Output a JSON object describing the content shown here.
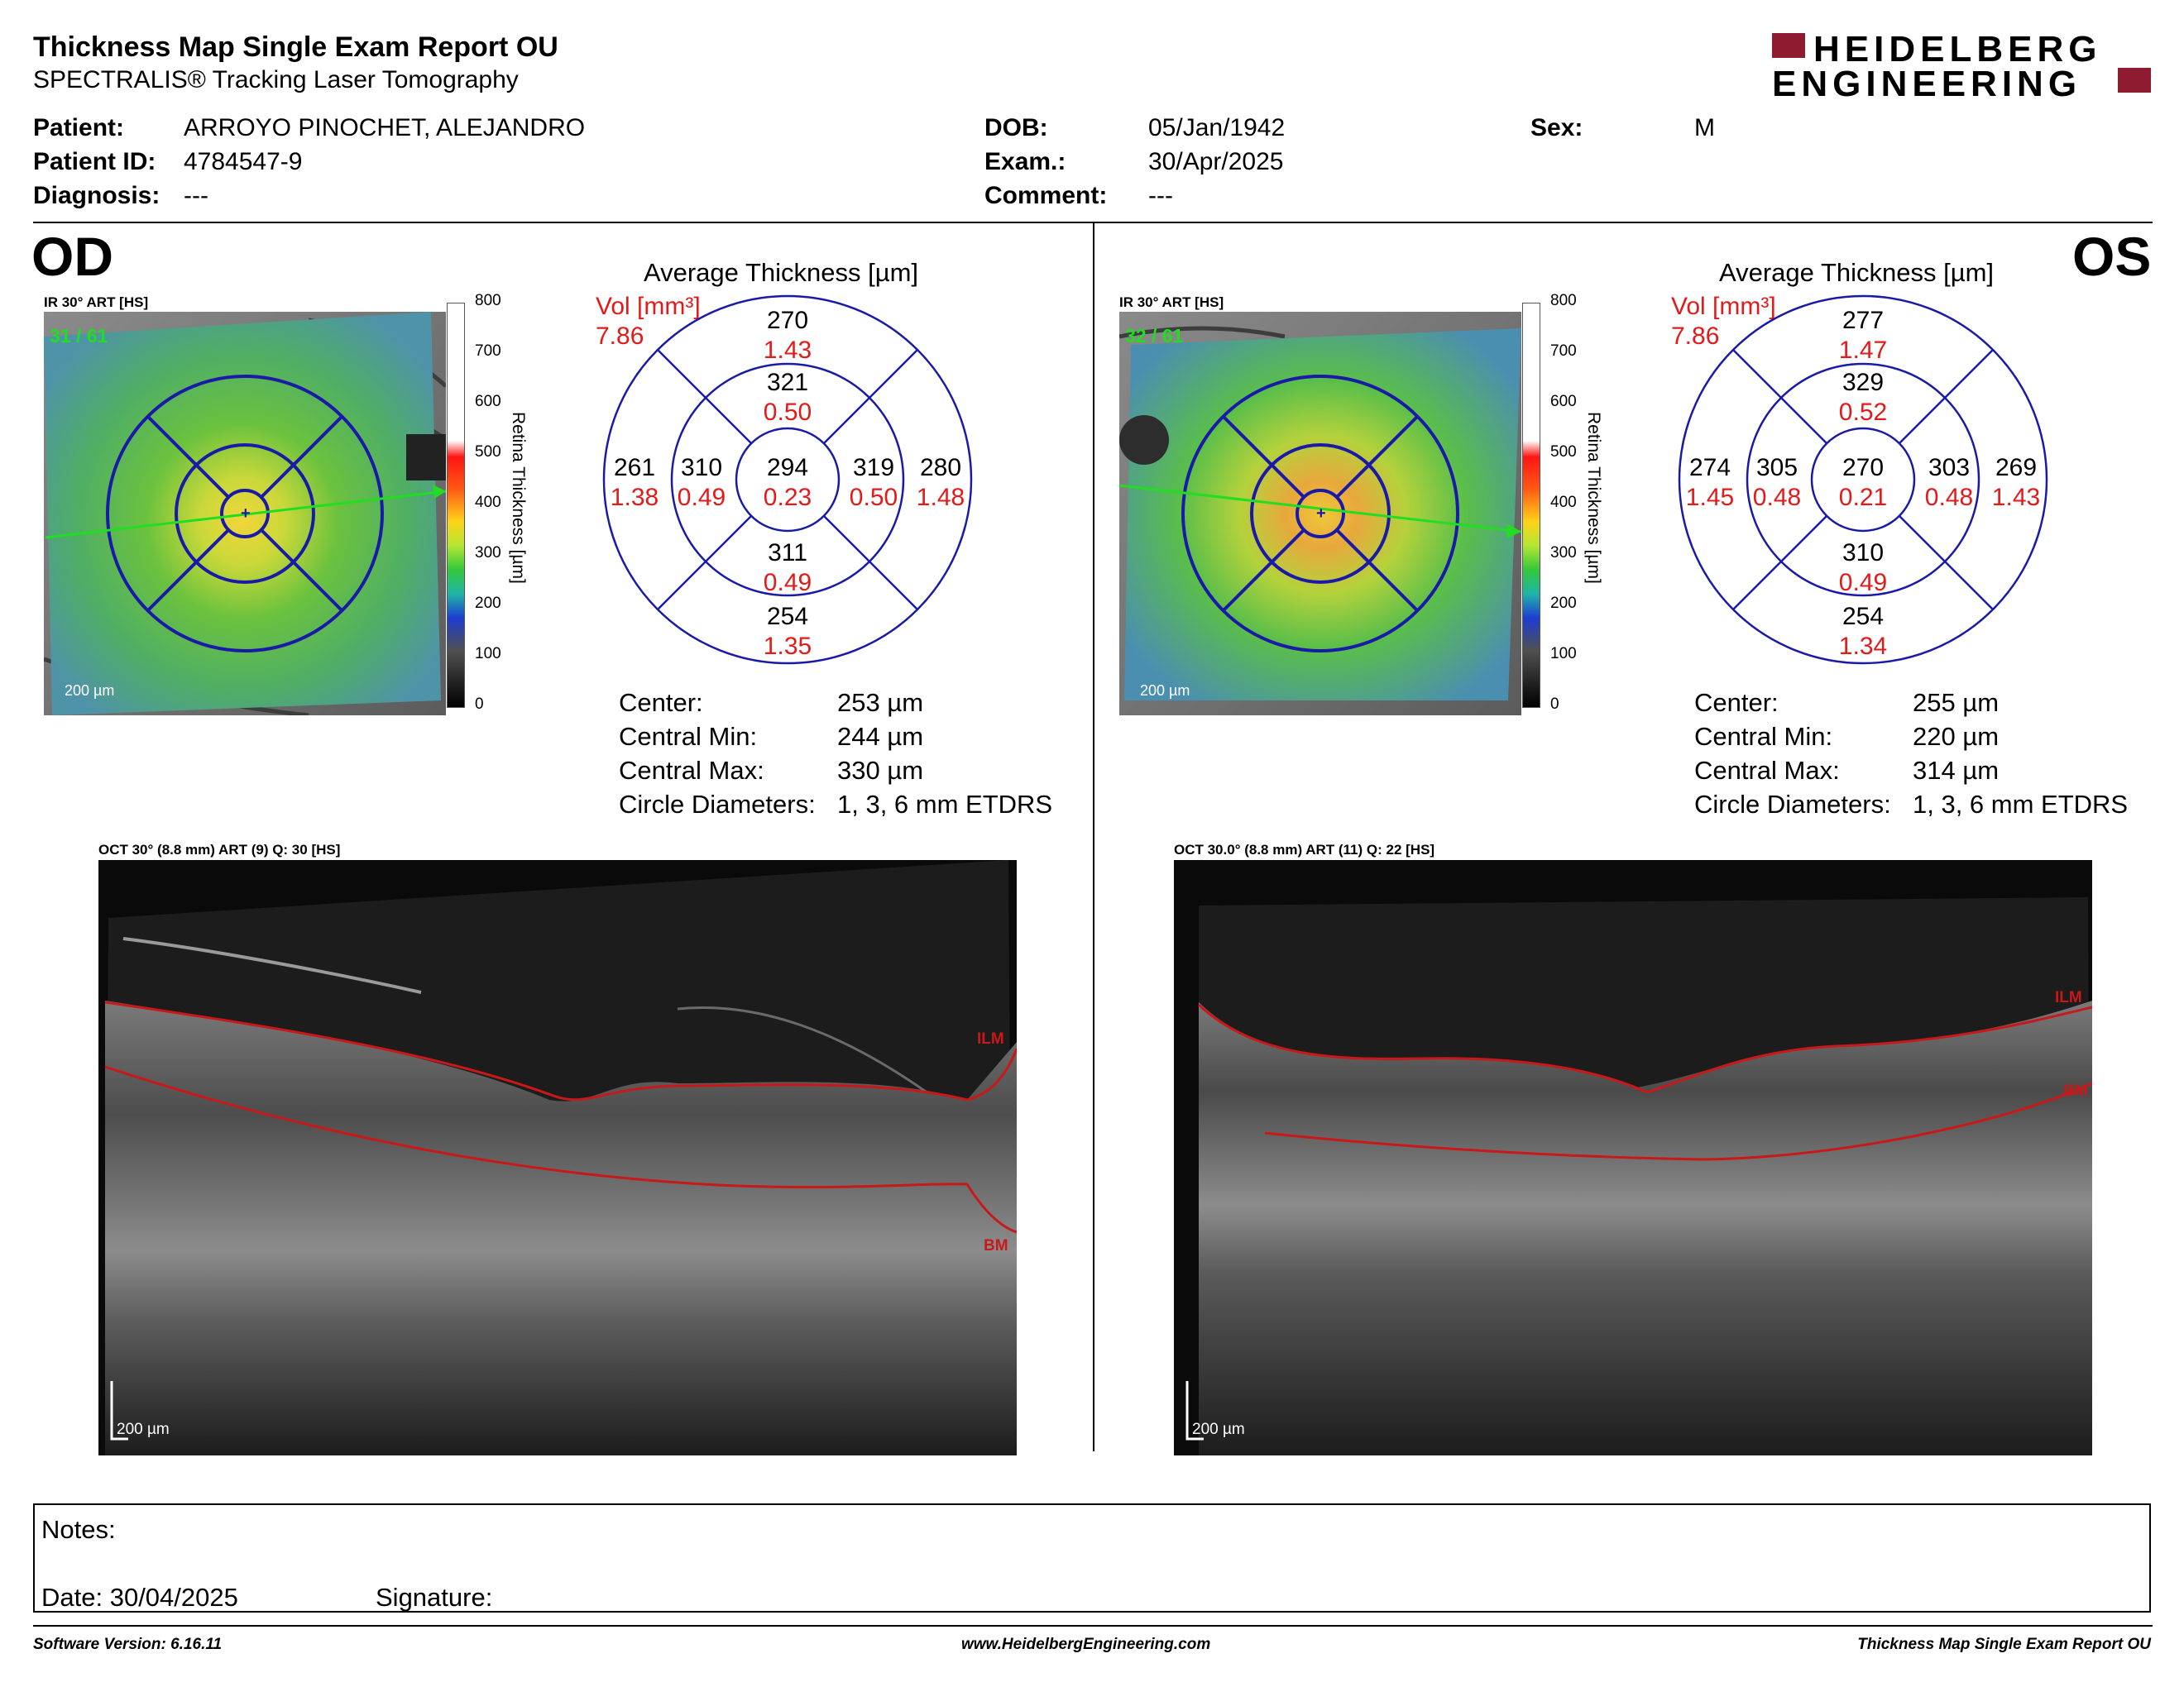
{
  "header": {
    "title": "Thickness Map Single Exam Report OU",
    "subtitle": "SPECTRALIS® Tracking Laser Tomography",
    "logo_line1": "HEIDELBERG",
    "logo_line2": "ENGINEERING"
  },
  "patient": {
    "patient_label": "Patient:",
    "patient_value": "ARROYO PINOCHET, ALEJANDRO",
    "id_label": "Patient ID:",
    "id_value": "4784547-9",
    "diagnosis_label": "Diagnosis:",
    "diagnosis_value": "---",
    "dob_label": "DOB:",
    "dob_value": "05/Jan/1942",
    "exam_label": "Exam.:",
    "exam_value": "30/Apr/2025",
    "comment_label": "Comment:",
    "comment_value": "---",
    "sex_label": "Sex:",
    "sex_value": "M"
  },
  "colorbar": {
    "ticks": [
      "800",
      "700",
      "600",
      "500",
      "400",
      "300",
      "200",
      "100",
      "0"
    ],
    "title": "Retina  Thickness [µm]"
  },
  "od": {
    "eye": "OD",
    "ir_caption": "IR 30° ART [HS]",
    "frame": "31 / 61",
    "scale": "200 µm",
    "etdrs_title": "Average Thickness [µm]",
    "vol_label": "Vol [mm³]",
    "vol_value": "7.86",
    "sectors": {
      "superior_outer": {
        "t": "270",
        "v": "1.43"
      },
      "superior_inner": {
        "t": "321",
        "v": "0.50"
      },
      "temporal_outer": {
        "t": "261",
        "v": "1.38"
      },
      "temporal_inner": {
        "t": "310",
        "v": "0.49"
      },
      "center": {
        "t": "294",
        "v": "0.23"
      },
      "nasal_inner": {
        "t": "319",
        "v": "0.50"
      },
      "nasal_outer": {
        "t": "280",
        "v": "1.48"
      },
      "inferior_inner": {
        "t": "311",
        "v": "0.49"
      },
      "inferior_outer": {
        "t": "254",
        "v": "1.35"
      }
    },
    "stats": {
      "center_label": "Center:",
      "center_value": "253 µm",
      "min_label": "Central Min:",
      "min_value": "244 µm",
      "max_label": "Central Max:",
      "max_value": "330 µm",
      "diam_label": "Circle Diameters:",
      "diam_value": "1, 3, 6 mm ETDRS"
    },
    "oct_caption": "OCT 30° (8.8 mm) ART (9) Q: 30 [HS]",
    "ilm": "ILM",
    "bm": "BM",
    "oct_scale": "200 µm"
  },
  "os": {
    "eye": "OS",
    "ir_caption": "IR 30° ART [HS]",
    "frame": "32 / 61",
    "scale": "200 µm",
    "etdrs_title": "Average Thickness [µm]",
    "vol_label": "Vol [mm³]",
    "vol_value": "7.86",
    "sectors": {
      "superior_outer": {
        "t": "277",
        "v": "1.47"
      },
      "superior_inner": {
        "t": "329",
        "v": "0.52"
      },
      "temporal_outer": {
        "t": "274",
        "v": "1.45"
      },
      "temporal_inner": {
        "t": "305",
        "v": "0.48"
      },
      "center": {
        "t": "270",
        "v": "0.21"
      },
      "nasal_inner": {
        "t": "303",
        "v": "0.48"
      },
      "nasal_outer": {
        "t": "269",
        "v": "1.43"
      },
      "inferior_inner": {
        "t": "310",
        "v": "0.49"
      },
      "inferior_outer": {
        "t": "254",
        "v": "1.34"
      }
    },
    "stats": {
      "center_label": "Center:",
      "center_value": "255 µm",
      "min_label": "Central Min:",
      "min_value": "220 µm",
      "max_label": "Central Max:",
      "max_value": "314 µm",
      "diam_label": "Circle Diameters:",
      "diam_value": "1, 3, 6 mm ETDRS"
    },
    "oct_caption": "OCT 30.0° (8.8 mm) ART (11) Q: 22 [HS]",
    "ilm": "ILM",
    "bm": "BM",
    "oct_scale": "200 µm"
  },
  "notes": {
    "notes_label": "Notes:",
    "date_label": "Date: 30/04/2025",
    "signature_label": "Signature:"
  },
  "footer": {
    "software": "Software Version: 6.16.11",
    "website": "www.HeidelbergEngineering.com",
    "report": "Thickness Map Single Exam Report OU"
  },
  "colors": {
    "volume_red": "#e21a1a",
    "grid_blue": "#1a1aa8",
    "frame_green": "#22dd22",
    "layer_red": "#c81818",
    "logo_red": "#8e1b2f"
  }
}
